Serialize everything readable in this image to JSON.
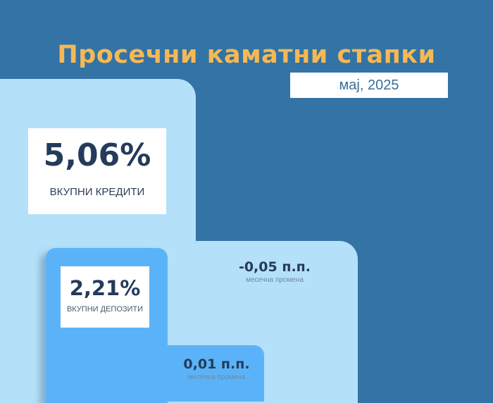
{
  "title": "Просечни каматни стапки",
  "date": "мај, 2025",
  "colors": {
    "background": "#3373a5",
    "title": "#f6b854",
    "credits_block": "#b5e0fa",
    "deposits_block": "#5ab3f8",
    "text": "#243b5a"
  },
  "credits": {
    "value": "5,06%",
    "label": "ВКУПНИ КРЕДИТИ",
    "change": "-0,05 п.п.",
    "change_label": "месечна промена"
  },
  "deposits": {
    "value": "2,21%",
    "label": "ВКУПНИ ДЕПОЗИТИ",
    "change": "0,01 п.п.",
    "change_label": "месечна промена"
  }
}
